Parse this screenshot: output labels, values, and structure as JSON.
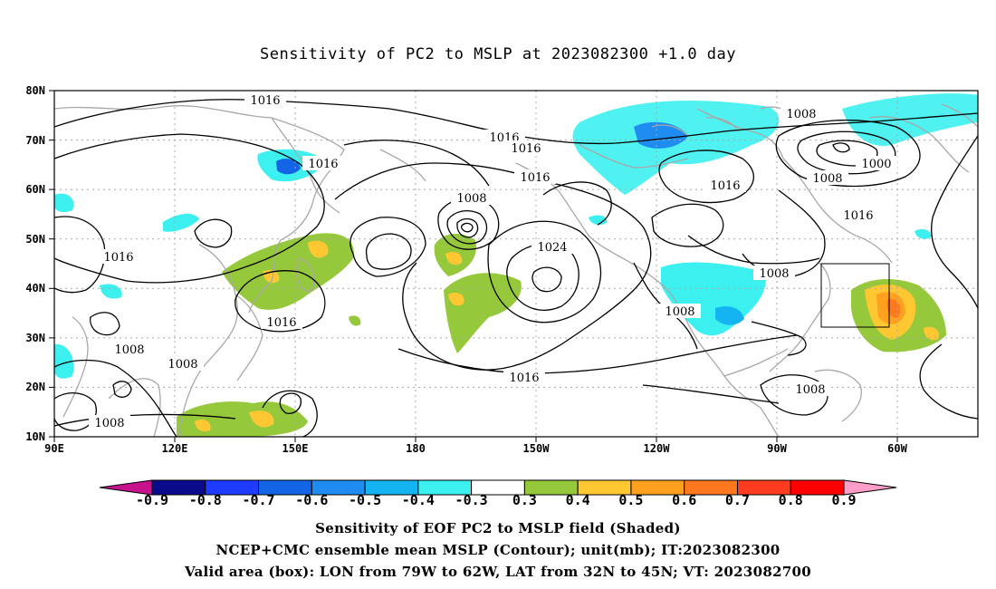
{
  "title": "Sensitivity of PC2 to MSLP at 2023082300 +1.0 day",
  "lat_axis": [
    "80N",
    "70N",
    "60N",
    "50N",
    "40N",
    "30N",
    "20N",
    "10N"
  ],
  "lon_axis": [
    "90E",
    "120E",
    "150E",
    "180",
    "150W",
    "120W",
    "90W",
    "60W"
  ],
  "contour_labels": [
    "1016",
    "1016",
    "1016",
    "1016",
    "1016",
    "1016",
    "1016",
    "1016",
    "1016",
    "1016",
    "1008",
    "1008",
    "1008",
    "1008",
    "1008",
    "1008",
    "1008",
    "1008",
    "1008",
    "1024",
    "1000"
  ],
  "colorbar": {
    "labels": [
      "-0.9",
      "-0.8",
      "-0.7",
      "-0.6",
      "-0.5",
      "-0.4",
      "-0.3",
      "0.3",
      "0.4",
      "0.5",
      "0.6",
      "0.7",
      "0.8",
      "0.9"
    ],
    "colors": [
      "#0a0a8c",
      "#1e3cff",
      "#1464e6",
      "#1e8cf0",
      "#14b4f0",
      "#3cf0f0",
      "#ffffff",
      "#96c83c",
      "#ffc832",
      "#ffa01e",
      "#ff781e",
      "#ff3c1e",
      "#ff0000"
    ],
    "low_end_color": "#c8148c",
    "high_end_color": "#ff9ec8"
  },
  "footer": {
    "line1": "Sensitivity of EOF PC2 to MSLP field (Shaded)",
    "line2": "NCEP+CMC ensemble mean MSLP (Contour); unit(mb); IT:2023082300",
    "line3": "Valid area (box): LON from 79W to 62W, LAT from 32N to 45N; VT: 2023082700"
  },
  "valid_area": {
    "lon_min": -79,
    "lon_max": -62,
    "lat_min": 32,
    "lat_max": 45
  }
}
